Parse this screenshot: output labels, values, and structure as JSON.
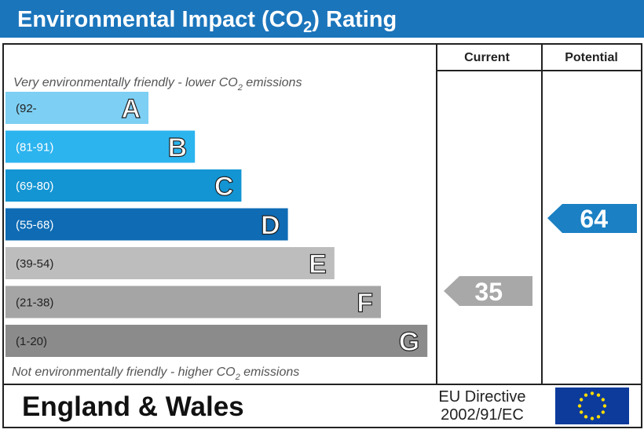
{
  "header": {
    "title": {
      "before": "Environmental Impact (CO",
      "sub": "2",
      "after": ") Rating"
    }
  },
  "columns": {
    "current": "Current",
    "potential": "Potential"
  },
  "top_note": {
    "before": "Very environmentally friendly - lower CO",
    "sub": "2",
    "after": " emissions"
  },
  "bottom_note": {
    "before": "Not environmentally friendly - higher CO",
    "sub": "2",
    "after": " emissions"
  },
  "bands": [
    {
      "range": "(92-",
      "letter": "A"
    },
    {
      "range": "(81-91)",
      "letter": "B"
    },
    {
      "range": "(69-80)",
      "letter": "C"
    },
    {
      "range": "(55-68)",
      "letter": "D"
    },
    {
      "range": "(39-54)",
      "letter": "E"
    },
    {
      "range": "(21-38)",
      "letter": "F"
    },
    {
      "range": "(1-20)",
      "letter": "G"
    }
  ],
  "current": "35",
  "potential": "64",
  "footer": {
    "region": "England & Wales",
    "directive_line1": "EU Directive",
    "directive_line2": "2002/91/EC"
  }
}
